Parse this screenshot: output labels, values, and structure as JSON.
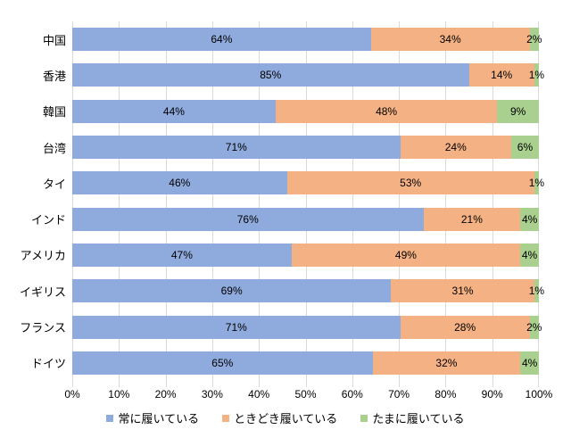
{
  "chart_data": {
    "type": "bar",
    "variant": "horizontal-stacked-100",
    "title": "",
    "categories": [
      "中国",
      "香港",
      "韓国",
      "台湾",
      "タイ",
      "インド",
      "アメリカ",
      "イギリス",
      "フランス",
      "ドイツ"
    ],
    "series": [
      {
        "name": "常に履いている",
        "color": "#8FAADC",
        "values": [
          64,
          85,
          44,
          71,
          46,
          76,
          47,
          69,
          71,
          65
        ]
      },
      {
        "name": "ときどき履いている",
        "color": "#F4B183",
        "values": [
          34,
          14,
          48,
          24,
          53,
          21,
          49,
          31,
          28,
          32
        ]
      },
      {
        "name": "たまに履いている",
        "color": "#A9D08E",
        "values": [
          2,
          1,
          9,
          6,
          1,
          4,
          4,
          1,
          2,
          4
        ]
      }
    ],
    "data_label_suffix": "%",
    "x_ticks": [
      "0%",
      "10%",
      "20%",
      "30%",
      "40%",
      "50%",
      "60%",
      "70%",
      "80%",
      "90%",
      "100%"
    ],
    "xlim": [
      0,
      100
    ],
    "grid": true,
    "gridline_color": "#D9D9D9",
    "legend_position": "bottom"
  },
  "colors": {
    "background": "#FFFFFF",
    "text": "#000000",
    "gridline": "#D9D9D9"
  }
}
